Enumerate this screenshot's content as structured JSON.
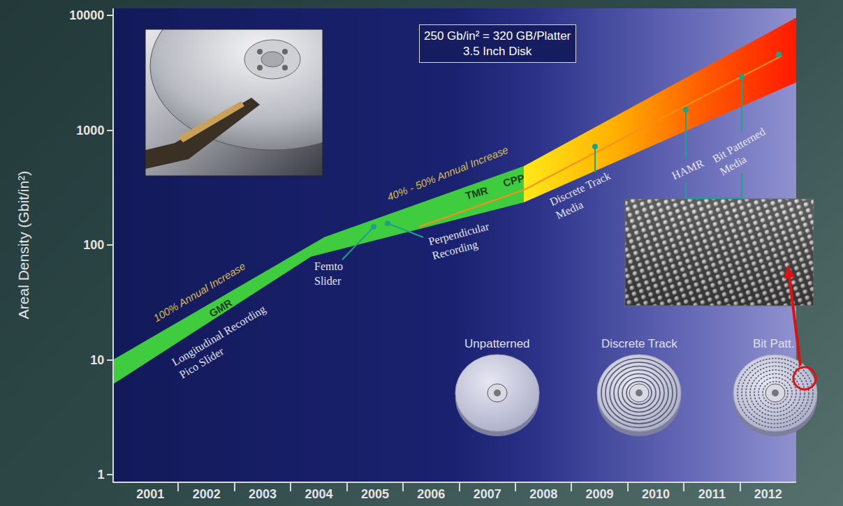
{
  "chart_data": {
    "type": "area",
    "y_label": "Areal Density (Gbit/in²)",
    "log": "y",
    "grid": false,
    "xlim": [
      2000.35,
      2012.5
    ],
    "xticks": [
      2001,
      2002,
      2003,
      2004,
      2005,
      2006,
      2007,
      2008,
      2009,
      2010,
      2011,
      2012
    ],
    "ylim": [
      0.87,
      11500
    ],
    "yticks": [
      1,
      10,
      100,
      1000,
      10000
    ],
    "series": [
      {
        "type": "line",
        "line_style": "none",
        "color": "#3fcc3f",
        "x": [
          2000.35,
          2003.86,
          2007.65
        ],
        "values": [
          6.2,
          79,
          235
        ]
      },
      {
        "type": "area",
        "line_style": "none",
        "color": "#3fcc3f",
        "x": [
          2000.35,
          2004.1,
          2007.65
        ],
        "values": [
          10.1,
          117,
          486
        ]
      },
      {
        "type": "line",
        "line_style": "none",
        "color": "#ffe81a",
        "x": [
          2007.65,
          2012.5
        ],
        "values": [
          235,
          2610
        ]
      },
      {
        "type": "area",
        "line_style": "none",
        "colors": [
          "#ffe81a",
          "#ffb000",
          "#ff5a00",
          "#ff1a00"
        ],
        "x": [
          2007.65,
          2012.5
        ],
        "values": [
          486,
          9560
        ]
      },
      {
        "type": "line",
        "line_style": "solid",
        "color": "#ff8c1a",
        "x": [
          2005.78,
          2007.65,
          2012.24
        ],
        "values": [
          144,
          302,
          4440
        ]
      }
    ],
    "annotations": [
      "100% Annual Increase",
      "GMR",
      "Longitudinal Recording\nPico Slider",
      "Femto\nSlider",
      "Perpendicular\nRecording",
      "40% - 50% Annual Increase",
      "TMR",
      "CPP",
      "Discrete Track\nMedia",
      "HAMR",
      "Bit Patterned\nMedia",
      "250 Gb/in² = 320 GB/Platter\n3.5 Inch Disk",
      "Unpatterned",
      "Discrete Track",
      "Bit Patt."
    ]
  }
}
